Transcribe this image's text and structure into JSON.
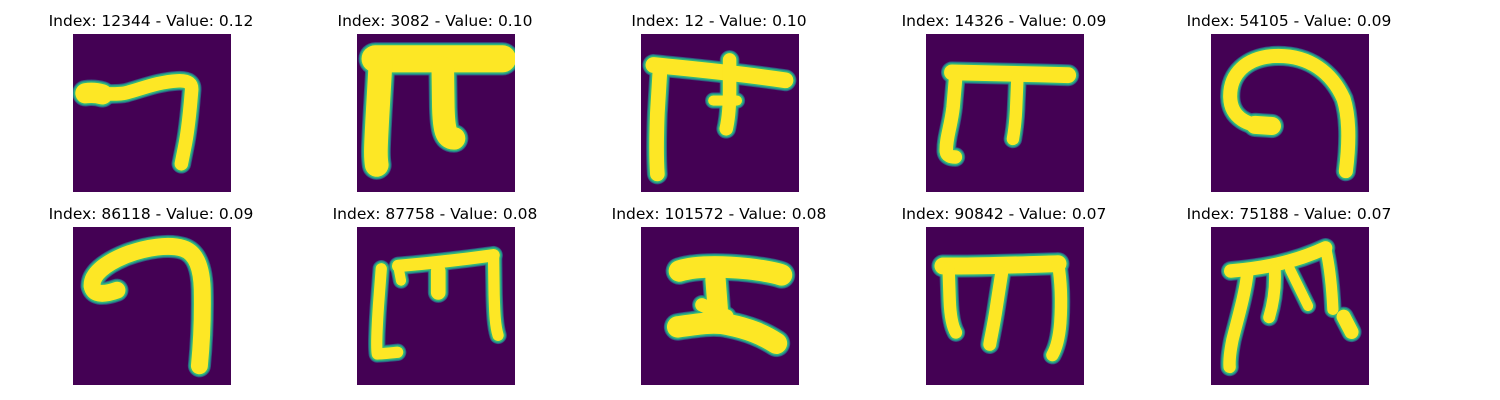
{
  "figure": {
    "colors": {
      "background": "#440154",
      "stroke": "#fde725",
      "edge_light": "#35b779",
      "edge_mid": "#21918c",
      "edge_dark": "#31688e"
    },
    "panels": [
      {
        "title": "Index: 12344 - Value: 0.12",
        "glyph": "hook-seven"
      },
      {
        "title": "Index: 3082 - Value: 0.10",
        "glyph": "bold-pi"
      },
      {
        "title": "Index: 12 - Value: 0.10",
        "glyph": "thin-pi"
      },
      {
        "title": "Index: 14326 - Value: 0.09",
        "glyph": "pi-curved-leg"
      },
      {
        "title": "Index: 54105 - Value: 0.09",
        "glyph": "spiral"
      },
      {
        "title": "Index: 86118 - Value: 0.09",
        "glyph": "curl-seven"
      },
      {
        "title": "Index: 87758 - Value: 0.08",
        "glyph": "three-leg"
      },
      {
        "title": "Index: 101572 - Value: 0.08",
        "glyph": "sigma-z"
      },
      {
        "title": "Index: 90842 - Value: 0.07",
        "glyph": "pi-three-leg"
      },
      {
        "title": "Index: 75188 - Value: 0.07",
        "glyph": "slanted-pi"
      }
    ]
  }
}
